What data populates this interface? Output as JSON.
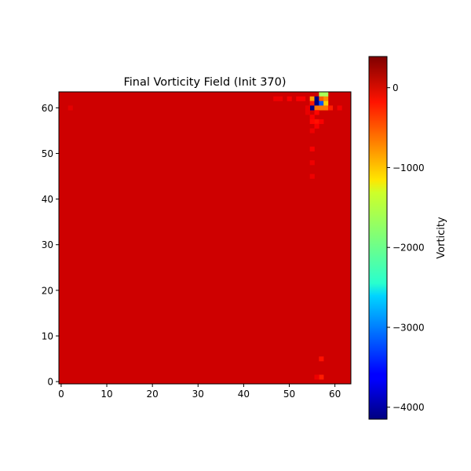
{
  "chart_data": {
    "type": "heatmap",
    "title": "Final Vorticity Field (Init 370)",
    "xlabel": "",
    "ylabel": "",
    "grid": false,
    "grid_size": [
      64,
      64
    ],
    "x_ticks": [
      0,
      10,
      20,
      30,
      40,
      50,
      60
    ],
    "y_ticks": [
      0,
      10,
      20,
      30,
      40,
      50,
      60
    ],
    "xlim": [
      -0.5,
      63.5
    ],
    "ylim": [
      -0.5,
      63.5
    ],
    "background_value": 40,
    "colormap": "jet",
    "colorbar": {
      "label": "Vorticity",
      "range": [
        -4150,
        390
      ],
      "ticks": [
        0,
        -1000,
        -2000,
        -3000,
        -4000
      ],
      "tick_labels": [
        "0",
        "−1000",
        "−2000",
        "−3000",
        "−4000"
      ]
    },
    "notable_cells": [
      {
        "x": 57,
        "y": 63,
        "value": -1700
      },
      {
        "x": 58,
        "y": 63,
        "value": -1700
      },
      {
        "x": 55,
        "y": 62,
        "value": -900
      },
      {
        "x": 56,
        "y": 62,
        "value": -4150
      },
      {
        "x": 57,
        "y": 62,
        "value": -600
      },
      {
        "x": 58,
        "y": 62,
        "value": -800
      },
      {
        "x": 55,
        "y": 61,
        "value": -300
      },
      {
        "x": 56,
        "y": 61,
        "value": -4150
      },
      {
        "x": 57,
        "y": 61,
        "value": -3200
      },
      {
        "x": 58,
        "y": 61,
        "value": -1100
      },
      {
        "x": 55,
        "y": 60,
        "value": -4150
      },
      {
        "x": 56,
        "y": 60,
        "value": -700
      },
      {
        "x": 57,
        "y": 60,
        "value": -700
      },
      {
        "x": 58,
        "y": 60,
        "value": -700
      },
      {
        "x": 59,
        "y": 60,
        "value": -300
      },
      {
        "x": 56,
        "y": 59,
        "value": -200
      },
      {
        "x": 55,
        "y": 58,
        "value": -150
      },
      {
        "x": 56,
        "y": 57,
        "value": -250
      },
      {
        "x": 57,
        "y": 57,
        "value": -150
      },
      {
        "x": 55,
        "y": 57,
        "value": -200
      },
      {
        "x": 56,
        "y": 56,
        "value": -150
      },
      {
        "x": 55,
        "y": 55,
        "value": -100
      },
      {
        "x": 55,
        "y": 51,
        "value": -150
      },
      {
        "x": 55,
        "y": 48,
        "value": -100
      },
      {
        "x": 55,
        "y": 45,
        "value": -100
      },
      {
        "x": 57,
        "y": 5,
        "value": -250
      },
      {
        "x": 57,
        "y": 1,
        "value": -300
      },
      {
        "x": 56,
        "y": 1,
        "value": -100
      },
      {
        "x": 47,
        "y": 62,
        "value": -100
      },
      {
        "x": 48,
        "y": 62,
        "value": -100
      },
      {
        "x": 50,
        "y": 62,
        "value": -150
      },
      {
        "x": 52,
        "y": 62,
        "value": -150
      },
      {
        "x": 53,
        "y": 62,
        "value": -150
      },
      {
        "x": 61,
        "y": 60,
        "value": -120
      },
      {
        "x": 2,
        "y": 60,
        "value": -60
      },
      {
        "x": 54,
        "y": 60,
        "value": -80
      },
      {
        "x": 54,
        "y": 59,
        "value": -80
      }
    ]
  }
}
